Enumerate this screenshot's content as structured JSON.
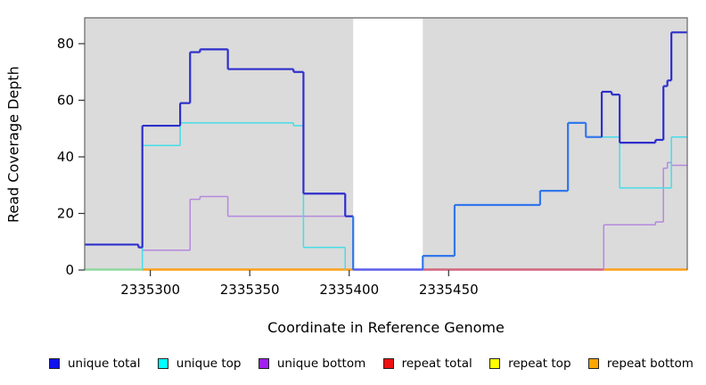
{
  "axes": {
    "x_title": "Coordinate in Reference Genome",
    "y_title": "Read Coverage Depth"
  },
  "chart_data": {
    "type": "line",
    "subtype": "step",
    "title": "",
    "xlabel": "Coordinate in Reference Genome",
    "ylabel": "Read Coverage Depth",
    "xlim": [
      2335267,
      2335570
    ],
    "ylim": [
      0,
      89
    ],
    "grid": "off",
    "plot_bg_color": "#DBDBDB",
    "x_ticks": [
      {
        "value": 2335300,
        "label": "2335300"
      },
      {
        "value": 2335350,
        "label": "2335350"
      },
      {
        "value": 2335400,
        "label": "2335400"
      },
      {
        "value": 2335450,
        "label": "2335450"
      }
    ],
    "y_ticks": [
      {
        "value": 0,
        "label": "0"
      },
      {
        "value": 20,
        "label": "20"
      },
      {
        "value": 40,
        "label": "40"
      },
      {
        "value": 60,
        "label": "60"
      },
      {
        "value": 80,
        "label": "80"
      }
    ],
    "gap_region": {
      "x_start": 2335402,
      "x_end": 2335437,
      "color": "#FFFFFF"
    },
    "baseline_segments": [
      {
        "x_start": 2335267,
        "x_end": 2335296,
        "color": "#90D8A0"
      },
      {
        "x_start": 2335296,
        "x_end": 2335402,
        "color": "#FFA018"
      },
      {
        "x_start": 2335402,
        "x_end": 2335437,
        "color": "#5C5CEC"
      },
      {
        "x_start": 2335437,
        "x_end": 2335528,
        "color": "#D4647E"
      },
      {
        "x_start": 2335528,
        "x_end": 2335570,
        "color": "#FFA018"
      }
    ],
    "series": [
      {
        "name": "unique total",
        "color": "#2E2ECC",
        "overlap_color": "#3377EB",
        "width": 2.2,
        "points": [
          [
            2335267,
            9
          ],
          [
            2335294,
            8
          ],
          [
            2335296,
            51
          ],
          [
            2335315,
            59
          ],
          [
            2335320,
            77
          ],
          [
            2335325,
            78
          ],
          [
            2335339,
            71
          ],
          [
            2335372,
            70
          ],
          [
            2335377,
            27
          ],
          [
            2335398,
            19
          ],
          [
            2335402,
            0
          ],
          [
            2335437,
            5
          ],
          [
            2335453,
            23
          ],
          [
            2335496,
            28
          ],
          [
            2335510,
            52
          ],
          [
            2335519,
            47
          ],
          [
            2335527,
            63
          ],
          [
            2335532,
            62
          ],
          [
            2335536,
            45
          ],
          [
            2335554,
            46
          ],
          [
            2335558,
            65
          ],
          [
            2335560,
            67
          ],
          [
            2335562,
            84
          ],
          [
            2335570,
            84
          ]
        ]
      },
      {
        "name": "unique top",
        "color": "#45DDE8",
        "width": 1.5,
        "points": [
          [
            2335267,
            0
          ],
          [
            2335296,
            44
          ],
          [
            2335315,
            52
          ],
          [
            2335372,
            51
          ],
          [
            2335377,
            8
          ],
          [
            2335398,
            0
          ],
          [
            2335437,
            5
          ],
          [
            2335453,
            23
          ],
          [
            2335496,
            28
          ],
          [
            2335510,
            52
          ],
          [
            2335519,
            47
          ],
          [
            2335536,
            29
          ],
          [
            2335562,
            47
          ],
          [
            2335570,
            47
          ]
        ]
      },
      {
        "name": "unique bottom",
        "color": "#B588DF",
        "width": 1.5,
        "points": [
          [
            2335267,
            9
          ],
          [
            2335294,
            8
          ],
          [
            2335296,
            7
          ],
          [
            2335320,
            25
          ],
          [
            2335325,
            26
          ],
          [
            2335339,
            19
          ],
          [
            2335402,
            0
          ],
          [
            2335528,
            16
          ],
          [
            2335554,
            17
          ],
          [
            2335558,
            36
          ],
          [
            2335560,
            38
          ],
          [
            2335562,
            37
          ],
          [
            2335570,
            37
          ]
        ]
      },
      {
        "name": "repeat total",
        "color": "#DD2222",
        "width": 1.5,
        "points": [
          [
            2335267,
            0
          ],
          [
            2335570,
            0
          ]
        ]
      },
      {
        "name": "repeat top",
        "color": "#EEEE00",
        "width": 1.5,
        "points": [
          [
            2335267,
            0
          ],
          [
            2335570,
            0
          ]
        ]
      },
      {
        "name": "repeat bottom",
        "color": "#FFA018",
        "width": 1.5,
        "points": [
          [
            2335267,
            0
          ],
          [
            2335570,
            0
          ]
        ]
      }
    ],
    "legend": {
      "position": "bottom",
      "items": [
        {
          "label": "unique total",
          "color": "#1111EE"
        },
        {
          "label": "unique top",
          "color": "#00FFFF"
        },
        {
          "label": "unique bottom",
          "color": "#A020F0"
        },
        {
          "label": "repeat total",
          "color": "#EE1111"
        },
        {
          "label": "repeat top",
          "color": "#FFFF00"
        },
        {
          "label": "repeat bottom",
          "color": "#FFA500"
        }
      ]
    }
  }
}
